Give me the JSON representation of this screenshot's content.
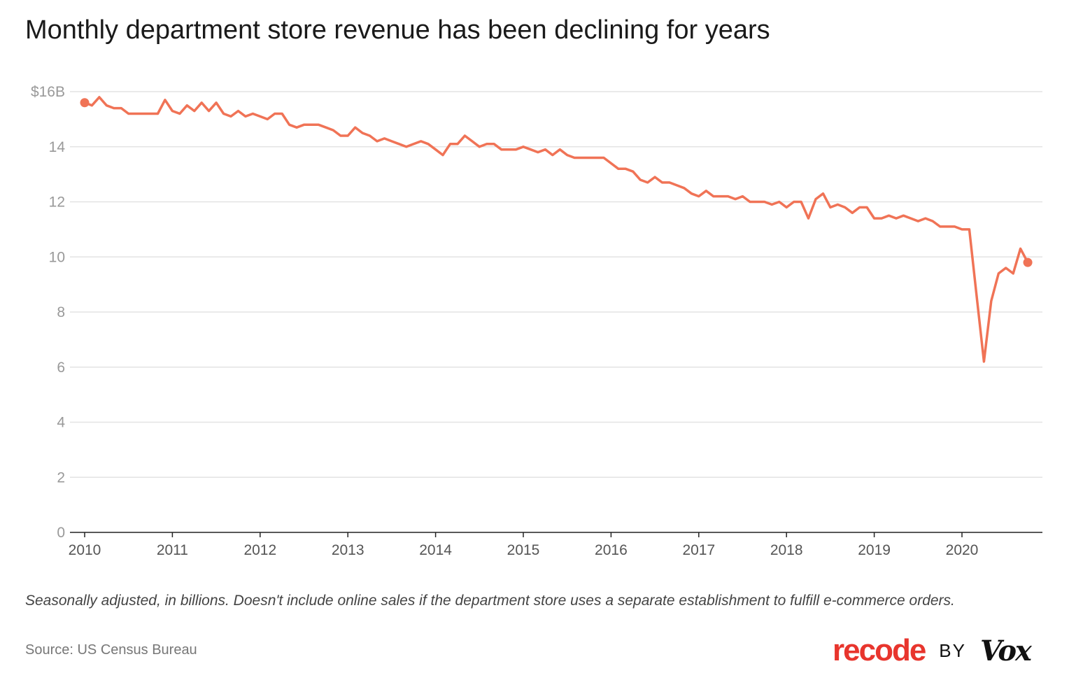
{
  "chart_data": {
    "type": "line",
    "title": "Monthly department store revenue has been declining for years",
    "xlabel": "",
    "ylabel": "",
    "x_start": "2010-01",
    "x_end": "2020-10",
    "x_ticks": [
      "2010",
      "2011",
      "2012",
      "2013",
      "2014",
      "2015",
      "2016",
      "2017",
      "2018",
      "2019",
      "2020"
    ],
    "y_ticks": [
      "0",
      "2",
      "4",
      "6",
      "8",
      "10",
      "12",
      "14",
      "$16B"
    ],
    "ylim": [
      0,
      16
    ],
    "grid": true,
    "color": "#f07356",
    "endpoint_markers": true,
    "series": [
      {
        "values": [
          15.6,
          15.5,
          15.8,
          15.5,
          15.4,
          15.4,
          15.2,
          15.2,
          15.2,
          15.2,
          15.2,
          15.7,
          15.3,
          15.2,
          15.5,
          15.3,
          15.6,
          15.3,
          15.6,
          15.2,
          15.1,
          15.3,
          15.1,
          15.2,
          15.1,
          15.0,
          15.2,
          15.2,
          14.8,
          14.7,
          14.8,
          14.8,
          14.8,
          14.7,
          14.6,
          14.4,
          14.4,
          14.7,
          14.5,
          14.4,
          14.2,
          14.3,
          14.2,
          14.1,
          14.0,
          14.1,
          14.2,
          14.1,
          13.9,
          13.7,
          14.1,
          14.1,
          14.4,
          14.2,
          14.0,
          14.1,
          14.1,
          13.9,
          13.9,
          13.9,
          14.0,
          13.9,
          13.8,
          13.9,
          13.7,
          13.9,
          13.7,
          13.6,
          13.6,
          13.6,
          13.6,
          13.6,
          13.4,
          13.2,
          13.2,
          13.1,
          12.8,
          12.7,
          12.9,
          12.7,
          12.7,
          12.6,
          12.5,
          12.3,
          12.2,
          12.4,
          12.2,
          12.2,
          12.2,
          12.1,
          12.2,
          12.0,
          12.0,
          12.0,
          11.9,
          12.0,
          11.8,
          12.0,
          12.0,
          11.4,
          12.1,
          12.3,
          11.8,
          11.9,
          11.8,
          11.6,
          11.8,
          11.8,
          11.4,
          11.4,
          11.5,
          11.4,
          11.5,
          11.4,
          11.3,
          11.4,
          11.3,
          11.1,
          11.1,
          11.1,
          11.0,
          11.0,
          8.6,
          6.2,
          8.4,
          9.4,
          9.6,
          9.4,
          10.3,
          9.8
        ]
      }
    ]
  },
  "footnote": "Seasonally adjusted, in billions. Doesn't include online sales if the department store uses a separate establishment to fulfill e-commerce orders.",
  "source": "Source: US Census Bureau",
  "logo": {
    "brand": "recode",
    "by": "BY",
    "parent": "Vox"
  }
}
